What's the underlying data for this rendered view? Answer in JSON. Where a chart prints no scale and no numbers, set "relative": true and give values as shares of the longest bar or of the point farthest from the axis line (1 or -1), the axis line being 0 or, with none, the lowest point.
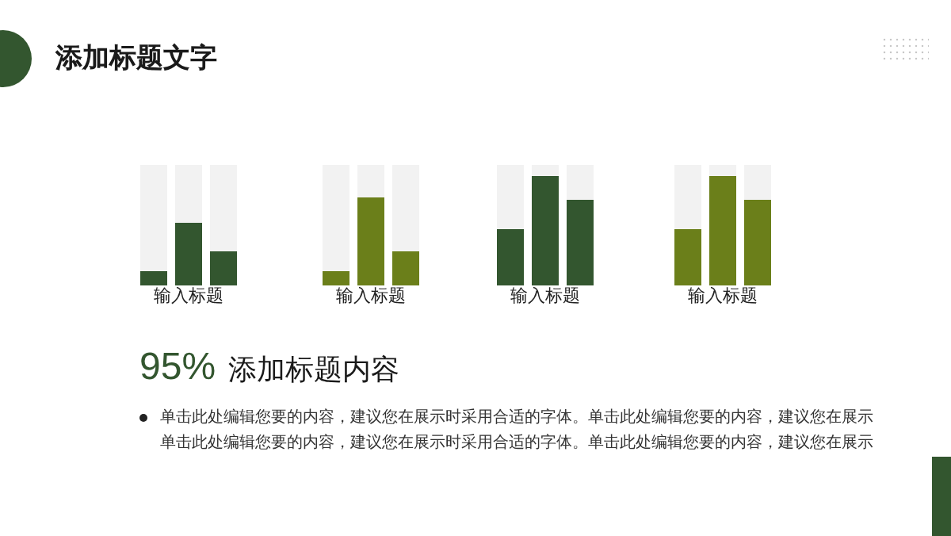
{
  "chart_data": [
    {
      "type": "other",
      "title": "添加标题文字"
    },
    {
      "type": "bar",
      "relative": true,
      "stacked": true,
      "categories": [
        null,
        null,
        null
      ],
      "xlabel": "输入标题",
      "series": [
        {
          "color": "#33562f",
          "values": [
            0.12,
            0.52,
            0.28
          ]
        },
        {
          "color": "#f2f2f2",
          "values": [
            0.88,
            0.48,
            0.72
          ]
        }
      ]
    },
    {
      "type": "bar",
      "relative": true,
      "stacked": true,
      "categories": [
        null,
        null,
        null
      ],
      "xlabel": "输入标题",
      "series": [
        {
          "color": "#6b7f1a",
          "values": [
            0.12,
            0.73,
            0.28
          ]
        },
        {
          "color": "#f2f2f2",
          "values": [
            0.88,
            0.27,
            0.72
          ]
        }
      ]
    },
    {
      "type": "bar",
      "relative": true,
      "stacked": true,
      "categories": [
        null,
        null,
        null
      ],
      "xlabel": "输入标题",
      "series": [
        {
          "color": "#33562f",
          "values": [
            0.47,
            0.91,
            0.71
          ]
        },
        {
          "color": "#f2f2f2",
          "values": [
            0.53,
            0.09,
            0.29
          ]
        }
      ]
    },
    {
      "type": "bar",
      "relative": true,
      "stacked": true,
      "categories": [
        null,
        null,
        null
      ],
      "xlabel": "输入标题",
      "series": [
        {
          "color": "#6b7f1a",
          "values": [
            0.47,
            0.91,
            0.71
          ]
        },
        {
          "color": "#f2f2f2",
          "values": [
            0.53,
            0.09,
            0.29
          ]
        }
      ]
    },
    {
      "type": "other",
      "title": "添加标题内容",
      "annotations": [
        "95%",
        "单击此处编辑您要的内容，建议您在展示时采用合适的字体。单击此处编辑您要的内容，建议您在展示",
        "单击此处编辑您要的内容，建议您在展示时采用合适的字体。单击此处编辑您要的内容，建议您在展示"
      ]
    }
  ]
}
